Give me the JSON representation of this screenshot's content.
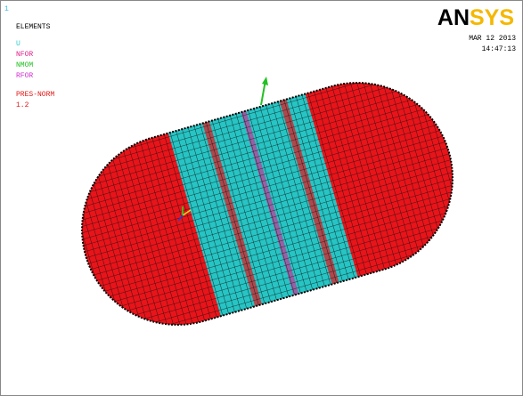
{
  "window_number": "1",
  "legend": {
    "title": "ELEMENTS",
    "items": [
      "U",
      "NFOR",
      "NMOM",
      "RFOR"
    ],
    "pressure_label": "PRES-NORM",
    "pressure_value": "1.2"
  },
  "logo": [
    "AN",
    "SYS"
  ],
  "date": "MAR 12 2013",
  "time": "14:47:13"
}
